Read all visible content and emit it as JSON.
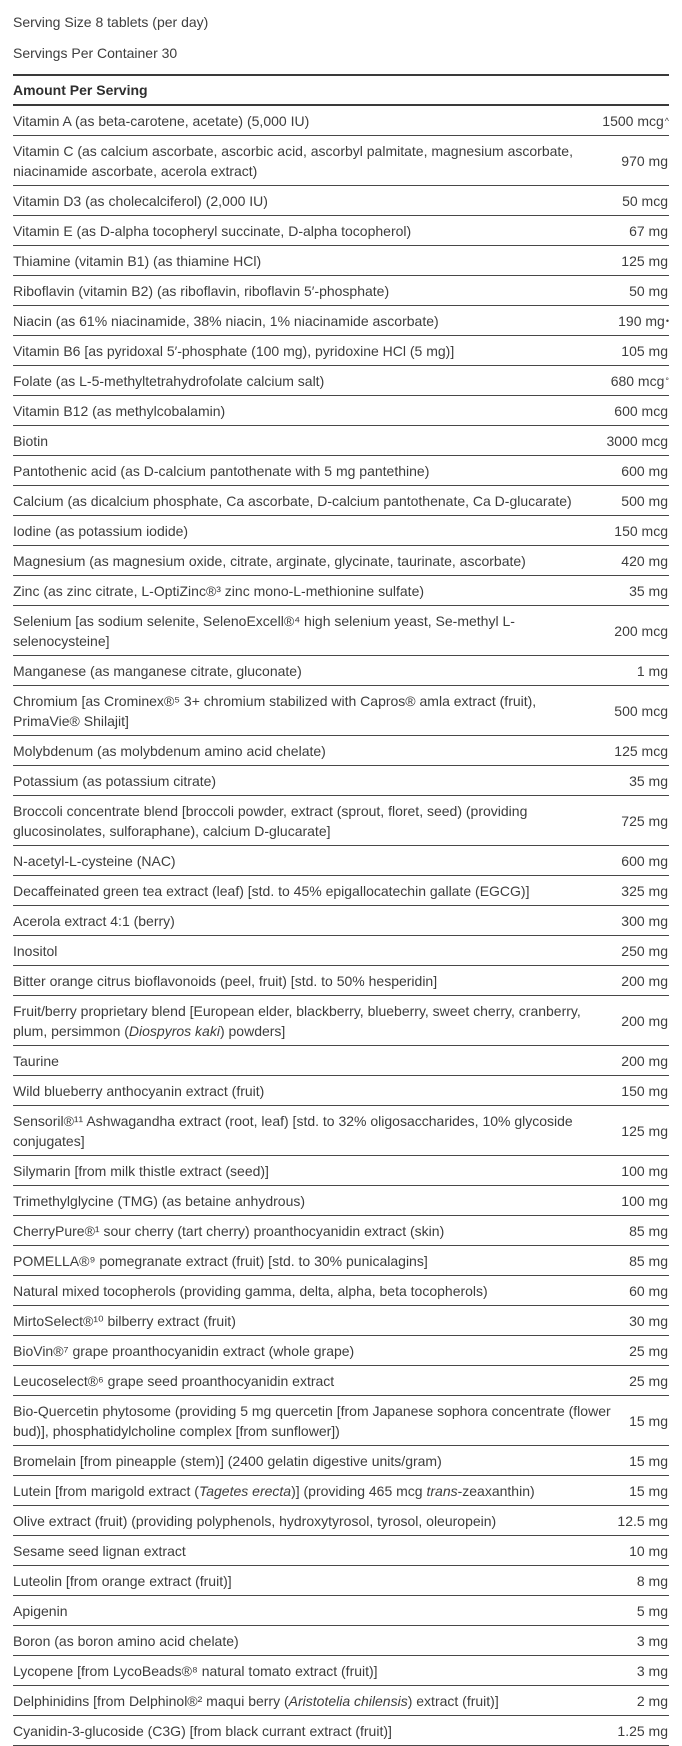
{
  "colors": {
    "text": "#3d3d3d",
    "rule": "#474747"
  },
  "header": {
    "serving_size": "Serving Size 8 tablets (per day)",
    "servings_per_container": "Servings Per Container 30",
    "column_header": "Amount Per Serving"
  },
  "rows": [
    {
      "name": [
        {
          "t": "Vitamin A (as beta-carotene, acetate) (5,000 IU)"
        }
      ],
      "amount": "1500 mcg",
      "mark": "^"
    },
    {
      "name": [
        {
          "t": "Vitamin C (as calcium ascorbate, ascorbic acid, ascorbyl palmitate, magnesium ascorbate, niacinamide ascorbate, acerola extract)"
        }
      ],
      "amount": "970 mg",
      "mark": ""
    },
    {
      "name": [
        {
          "t": "Vitamin D3 (as cholecalciferol) (2,000 IU)"
        }
      ],
      "amount": "50 mcg",
      "mark": ""
    },
    {
      "name": [
        {
          "t": "Vitamin E (as D-alpha tocopheryl succinate, D-alpha tocopherol)"
        }
      ],
      "amount": "67 mg",
      "mark": ""
    },
    {
      "name": [
        {
          "t": "Thiamine (vitamin B1) (as thiamine HCl)"
        }
      ],
      "amount": "125 mg",
      "mark": ""
    },
    {
      "name": [
        {
          "t": "Riboflavin (vitamin B2) (as riboflavin, riboflavin 5′-phosphate)"
        }
      ],
      "amount": "50 mg",
      "mark": ""
    },
    {
      "name": [
        {
          "t": "Niacin (as 61% niacinamide, 38% niacin, 1% niacinamide ascorbate)"
        }
      ],
      "amount": "190 mg",
      "mark": "•"
    },
    {
      "name": [
        {
          "t": "Vitamin B6 [as pyridoxal 5′-phosphate (100 mg), pyridoxine HCl (5 mg)]"
        }
      ],
      "amount": "105 mg",
      "mark": ""
    },
    {
      "name": [
        {
          "t": "Folate (as L-5-methyltetrahydrofolate calcium salt)"
        }
      ],
      "amount": "680 mcg",
      "mark": "°"
    },
    {
      "name": [
        {
          "t": "Vitamin B12 (as methylcobalamin)"
        }
      ],
      "amount": "600 mcg",
      "mark": ""
    },
    {
      "name": [
        {
          "t": "Biotin"
        }
      ],
      "amount": "3000 mcg",
      "mark": ""
    },
    {
      "name": [
        {
          "t": "Pantothenic acid (as D-calcium pantothenate with 5 mg pantethine)"
        }
      ],
      "amount": "600 mg",
      "mark": ""
    },
    {
      "name": [
        {
          "t": "Calcium (as dicalcium phosphate, Ca ascorbate, D-calcium pantothenate, Ca D-glucarate)"
        }
      ],
      "amount": "500 mg",
      "mark": ""
    },
    {
      "name": [
        {
          "t": "Iodine (as potassium iodide)"
        }
      ],
      "amount": "150 mcg",
      "mark": ""
    },
    {
      "name": [
        {
          "t": "Magnesium (as magnesium oxide, citrate, arginate, glycinate, taurinate, ascorbate)"
        }
      ],
      "amount": "420 mg",
      "mark": ""
    },
    {
      "name": [
        {
          "t": "Zinc (as zinc citrate, L-OptiZinc®³ zinc mono-L-methionine sulfate)"
        }
      ],
      "amount": "35 mg",
      "mark": ""
    },
    {
      "name": [
        {
          "t": "Selenium [as sodium selenite, SelenoExcell®⁴ high selenium yeast, Se-methyl L-selenocysteine]"
        }
      ],
      "amount": "200 mcg",
      "mark": ""
    },
    {
      "name": [
        {
          "t": "Manganese (as manganese citrate, gluconate)"
        }
      ],
      "amount": "1 mg",
      "mark": ""
    },
    {
      "name": [
        {
          "t": "Chromium [as Crominex®⁵ 3+ chromium stabilized with Capros® amla extract (fruit), PrimaVie® Shilajit]"
        }
      ],
      "amount": "500 mcg",
      "mark": ""
    },
    {
      "name": [
        {
          "t": "Molybdenum (as molybdenum amino acid chelate)"
        }
      ],
      "amount": "125 mcg",
      "mark": ""
    },
    {
      "name": [
        {
          "t": "Potassium (as potassium citrate)"
        }
      ],
      "amount": "35 mg",
      "mark": ""
    },
    {
      "name": [
        {
          "t": "Broccoli concentrate blend [broccoli powder, extract (sprout, floret, seed) (providing glucosinolates, sulforaphane), calcium D-glucarate]"
        }
      ],
      "amount": "725 mg",
      "mark": ""
    },
    {
      "name": [
        {
          "t": "N-acetyl-L-cysteine (NAC)"
        }
      ],
      "amount": "600 mg",
      "mark": ""
    },
    {
      "name": [
        {
          "t": "Decaffeinated green tea extract (leaf) [std. to 45% epigallocatechin gallate (EGCG)]"
        }
      ],
      "amount": "325 mg",
      "mark": ""
    },
    {
      "name": [
        {
          "t": "Acerola extract 4:1 (berry)"
        }
      ],
      "amount": "300 mg",
      "mark": ""
    },
    {
      "name": [
        {
          "t": "Inositol"
        }
      ],
      "amount": "250 mg",
      "mark": ""
    },
    {
      "name": [
        {
          "t": "Bitter orange citrus bioflavonoids (peel, fruit) [std. to 50% hesperidin]"
        }
      ],
      "amount": "200 mg",
      "mark": ""
    },
    {
      "name": [
        {
          "t": "Fruit/berry proprietary blend [European elder, blackberry, blueberry, sweet cherry, cranberry, plum, persimmon ("
        },
        {
          "t": "Diospyros kaki",
          "i": true
        },
        {
          "t": ") powders]"
        }
      ],
      "amount": "200 mg",
      "mark": ""
    },
    {
      "name": [
        {
          "t": "Taurine"
        }
      ],
      "amount": "200 mg",
      "mark": ""
    },
    {
      "name": [
        {
          "t": "Wild blueberry anthocyanin extract (fruit)"
        }
      ],
      "amount": "150 mg",
      "mark": ""
    },
    {
      "name": [
        {
          "t": "Sensoril®¹¹ Ashwagandha extract (root, leaf) [std. to 32% oligosaccharides, 10% glycoside conjugates]"
        }
      ],
      "amount": "125 mg",
      "mark": ""
    },
    {
      "name": [
        {
          "t": "Silymarin [from milk thistle extract (seed)]"
        }
      ],
      "amount": "100 mg",
      "mark": ""
    },
    {
      "name": [
        {
          "t": "Trimethylglycine (TMG) (as betaine anhydrous)"
        }
      ],
      "amount": "100 mg",
      "mark": ""
    },
    {
      "name": [
        {
          "t": "CherryPure®¹ sour cherry (tart cherry) proanthocyanidin extract (skin)"
        }
      ],
      "amount": "85 mg",
      "mark": ""
    },
    {
      "name": [
        {
          "t": "POMELLA®⁹ pomegranate extract (fruit) [std. to 30% punicalagins]"
        }
      ],
      "amount": "85 mg",
      "mark": ""
    },
    {
      "name": [
        {
          "t": "Natural mixed tocopherols (providing gamma, delta, alpha, beta tocopherols)"
        }
      ],
      "amount": "60 mg",
      "mark": ""
    },
    {
      "name": [
        {
          "t": "MirtoSelect®¹⁰ bilberry extract (fruit)"
        }
      ],
      "amount": "30 mg",
      "mark": ""
    },
    {
      "name": [
        {
          "t": "BioVin®⁷ grape proanthocyanidin extract (whole grape)"
        }
      ],
      "amount": "25 mg",
      "mark": ""
    },
    {
      "name": [
        {
          "t": "Leucoselect®⁶ grape seed proanthocyanidin extract"
        }
      ],
      "amount": "25 mg",
      "mark": ""
    },
    {
      "name": [
        {
          "t": "Bio-Quercetin phytosome (providing 5 mg quercetin [from Japanese sophora concentrate (flower bud)], phosphatidylcholine complex [from sunflower])"
        }
      ],
      "amount": "15 mg",
      "mark": ""
    },
    {
      "name": [
        {
          "t": "Bromelain [from pineapple (stem)] (2400 gelatin digestive units/gram)"
        }
      ],
      "amount": "15 mg",
      "mark": ""
    },
    {
      "name": [
        {
          "t": "Lutein [from marigold extract ("
        },
        {
          "t": "Tagetes erecta",
          "i": true
        },
        {
          "t": ")] (providing 465 mcg "
        },
        {
          "t": "trans",
          "i": true
        },
        {
          "t": "-zeaxanthin)"
        }
      ],
      "amount": "15 mg",
      "mark": ""
    },
    {
      "name": [
        {
          "t": "Olive extract (fruit) (providing polyphenols, hydroxytyrosol, tyrosol, oleuropein)"
        }
      ],
      "amount": "12.5 mg",
      "mark": ""
    },
    {
      "name": [
        {
          "t": "Sesame seed lignan extract"
        }
      ],
      "amount": "10 mg",
      "mark": ""
    },
    {
      "name": [
        {
          "t": "Luteolin [from orange extract (fruit)]"
        }
      ],
      "amount": "8 mg",
      "mark": ""
    },
    {
      "name": [
        {
          "t": "Apigenin"
        }
      ],
      "amount": "5 mg",
      "mark": ""
    },
    {
      "name": [
        {
          "t": "Boron (as boron amino acid chelate)"
        }
      ],
      "amount": "3 mg",
      "mark": ""
    },
    {
      "name": [
        {
          "t": "Lycopene [from LycoBeads®⁸ natural tomato extract (fruit)]"
        }
      ],
      "amount": "3 mg",
      "mark": ""
    },
    {
      "name": [
        {
          "t": "Delphinidins [from Delphinol®² maqui berry ("
        },
        {
          "t": "Aristotelia chilensis",
          "i": true
        },
        {
          "t": ") extract (fruit)]"
        }
      ],
      "amount": "2 mg",
      "mark": ""
    },
    {
      "name": [
        {
          "t": "Cyanidin-3-glucoside (C3G) [from black currant extract (fruit)]"
        }
      ],
      "amount": "1.25 mg",
      "mark": ""
    }
  ]
}
